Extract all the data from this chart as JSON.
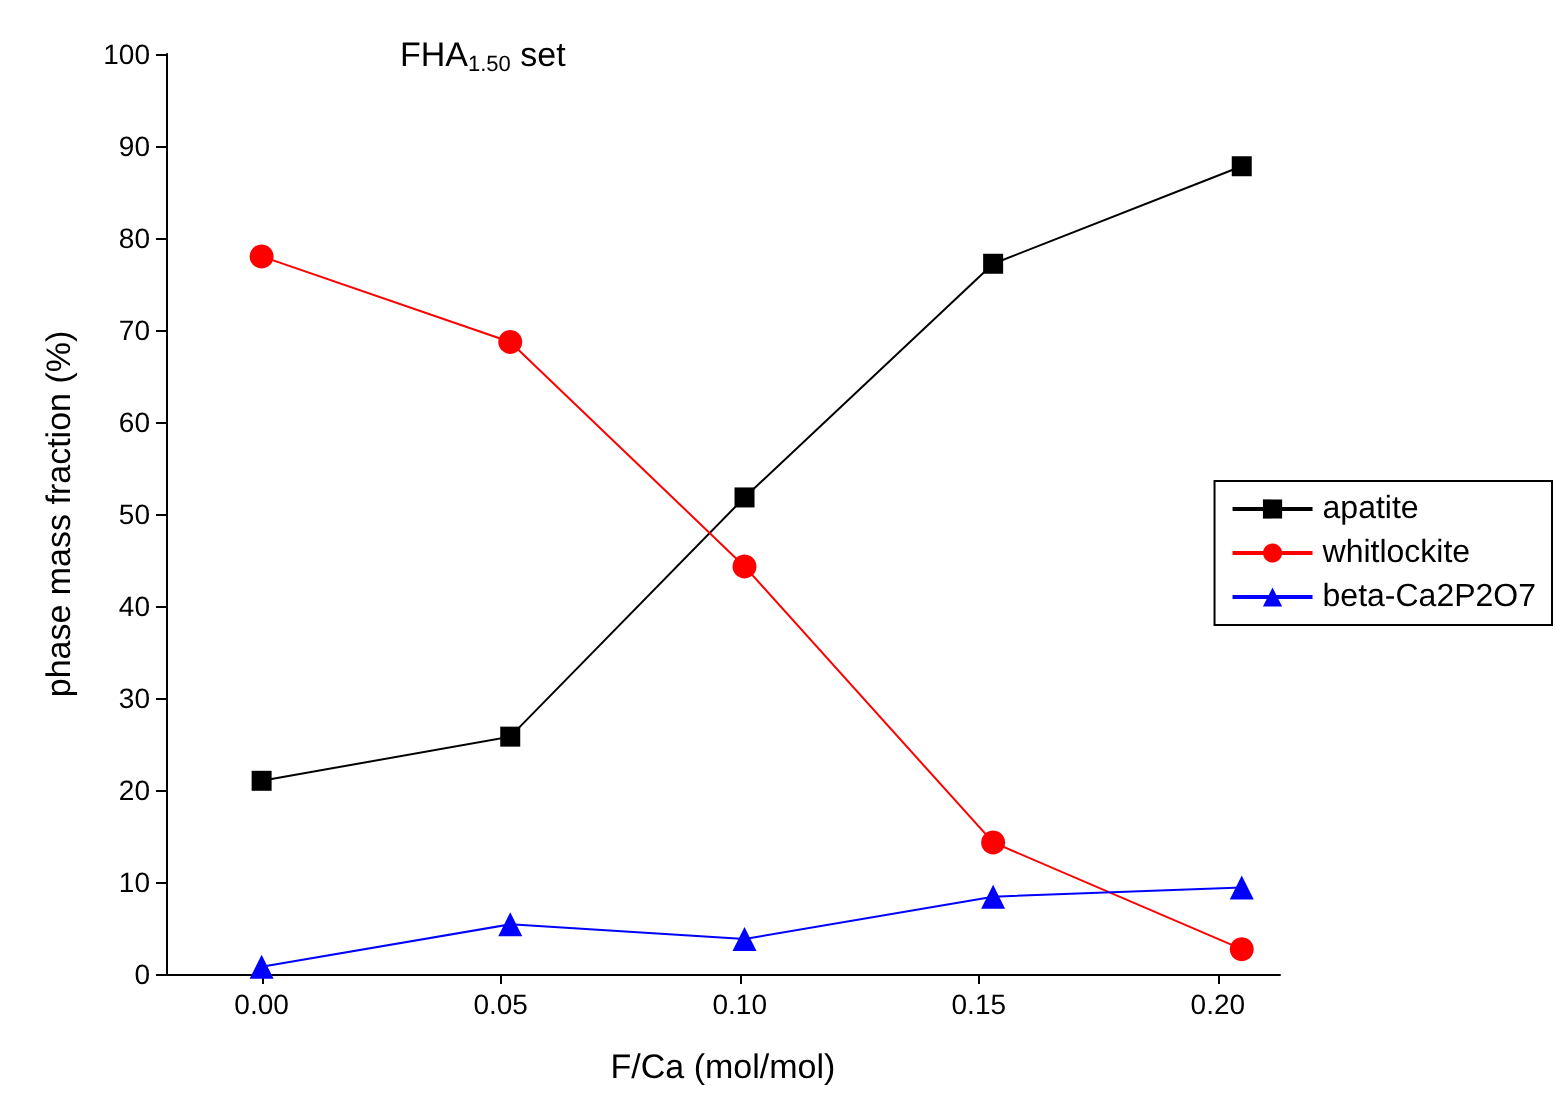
{
  "chart_data": {
    "type": "line",
    "title": "FHA$_{1.50}$ set",
    "xlabel": "F/Ca (mol/mol)",
    "ylabel": "phase mass fraction (%)",
    "x": [
      0,
      0.052,
      0.101,
      0.153,
      0.205
    ],
    "series": [
      {
        "name": "apatite",
        "color": "#000000",
        "marker": "square",
        "values": [
          21,
          25.8,
          51.8,
          77.2,
          87.8
        ]
      },
      {
        "name": "whitlockite",
        "color": "#ff0000",
        "marker": "circle",
        "values": [
          78,
          68.7,
          44.3,
          14.3,
          2.7
        ]
      },
      {
        "name": "beta-Ca2P2O7",
        "color": "#0000ff",
        "marker": "triangle",
        "values": [
          0.8,
          5.4,
          3.8,
          8.4,
          9.4
        ]
      }
    ],
    "xlim": [
      -0.02,
      0.213
    ],
    "xticks": [
      {
        "value": 0,
        "label": "0.00"
      },
      {
        "value": 0.05,
        "label": "0.05"
      },
      {
        "value": 0.1,
        "label": "0.10"
      },
      {
        "value": 0.15,
        "label": "0.15"
      },
      {
        "value": 0.2,
        "label": "0.20"
      }
    ],
    "ylim": [
      0,
      100
    ],
    "yticks": [
      0,
      10,
      20,
      30,
      40,
      50,
      60,
      70,
      80,
      90,
      100
    ],
    "grid": false,
    "legend": "right",
    "line_style": "solid"
  }
}
